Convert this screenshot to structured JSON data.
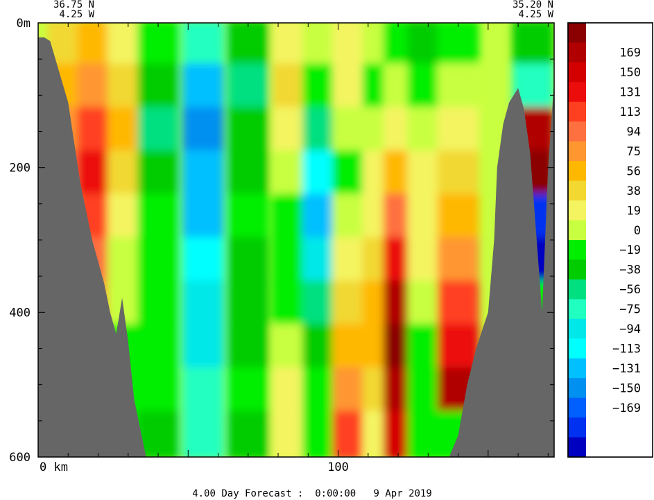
{
  "chart_data": {
    "type": "heatmap",
    "title": "",
    "subtitle": "4.00 Day Forecast :  0:00:00   9 Apr 2019",
    "section": {
      "start": {
        "lat": "36.75 N",
        "lon": "4.25 W"
      },
      "end": {
        "lat": "35.20 N",
        "lon": "4.25 W"
      }
    },
    "xlabel": "",
    "ylabel": "",
    "x_unit": "km",
    "x_tick_labels": [
      "0 km",
      "100"
    ],
    "x_ticks": [
      0,
      100
    ],
    "xlim": [
      0,
      172
    ],
    "y_tick_labels": [
      "0m",
      "200",
      "400",
      "600"
    ],
    "y_ticks": [
      0,
      200,
      400,
      600
    ],
    "ylim": [
      600,
      0
    ],
    "colorbar": {
      "labels": [
        "169",
        "150",
        "131",
        "113",
        "94",
        "75",
        "56",
        "38",
        "19",
        "0",
        "−19",
        "−38",
        "−56",
        "−75",
        "−94",
        "−113",
        "−131",
        "−150",
        "−169"
      ],
      "colors": [
        "#8b0000",
        "#b00000",
        "#d40000",
        "#ec0c0c",
        "#ff4020",
        "#ff7040",
        "#ff9630",
        "#ffb800",
        "#f2d830",
        "#f4f460",
        "#c8ff40",
        "#00ee00",
        "#00cc00",
        "#00e080",
        "#20ffc0",
        "#00e8e8",
        "#00ffff",
        "#00c0ff",
        "#0090f0",
        "#0060ff",
        "#0030f0",
        "#0000c0"
      ]
    },
    "bathymetry_left_depth_m": [
      20,
      20,
      25,
      110,
      220,
      300,
      360,
      400,
      430,
      380,
      440,
      520,
      600,
      600
    ],
    "bathymetry_left_x_km": [
      0,
      2,
      4,
      10,
      14,
      18,
      22,
      24,
      26,
      28,
      30,
      32,
      36,
      0
    ],
    "bathymetry_right_depth_m": [
      600,
      570,
      500,
      450,
      400,
      300,
      200,
      140,
      110,
      90,
      120,
      180,
      400,
      200,
      80,
      600
    ],
    "bathymetry_right_x_km": [
      137,
      140,
      143,
      146,
      150,
      152,
      153,
      155,
      157,
      160,
      162,
      164,
      168,
      170,
      172,
      172
    ],
    "columns": [
      {
        "x_km": 10,
        "values": [
          40,
          60,
          80,
          90,
          60,
          40,
          20,
          10,
          5,
          0
        ]
      },
      {
        "x_km": 20,
        "values": [
          60,
          80,
          100,
          120,
          100,
          90,
          80,
          50,
          30,
          20
        ]
      },
      {
        "x_km": 30,
        "values": [
          20,
          40,
          60,
          40,
          20,
          10,
          5,
          0,
          -10,
          -10
        ]
      },
      {
        "x_km": 40,
        "values": [
          0,
          -20,
          -40,
          -20,
          -10,
          -10,
          0,
          0,
          -10,
          -20
        ]
      },
      {
        "x_km": 55,
        "values": [
          -60,
          -100,
          -120,
          -110,
          -100,
          -90,
          -80,
          -70,
          -60,
          -50
        ]
      },
      {
        "x_km": 70,
        "values": [
          -20,
          -40,
          -30,
          -20,
          -10,
          -20,
          -30,
          -20,
          -10,
          -20
        ]
      },
      {
        "x_km": 85,
        "values": [
          20,
          40,
          30,
          10,
          0,
          -10,
          0,
          10,
          20,
          20
        ]
      },
      {
        "x_km": 95,
        "values": [
          10,
          0,
          -40,
          -90,
          -110,
          -80,
          -40,
          -20,
          0,
          0
        ]
      },
      {
        "x_km": 105,
        "values": [
          30,
          20,
          10,
          0,
          10,
          20,
          40,
          60,
          80,
          100
        ]
      },
      {
        "x_km": 115,
        "values": [
          10,
          0,
          10,
          20,
          30,
          40,
          50,
          60,
          40,
          20
        ]
      },
      {
        "x_km": 122,
        "values": [
          0,
          10,
          30,
          60,
          90,
          120,
          150,
          170,
          160,
          140
        ]
      },
      {
        "x_km": 130,
        "values": [
          -20,
          0,
          10,
          20,
          30,
          20,
          10,
          0,
          -10,
          0
        ]
      },
      {
        "x_km": 140,
        "values": [
          0,
          10,
          30,
          40,
          60,
          80,
          100,
          130,
          150,
          0
        ]
      },
      {
        "x_km": 165,
        "values": [
          -30,
          -60,
          150,
          170,
          -150,
          -170,
          0,
          0,
          0,
          0
        ]
      }
    ]
  }
}
